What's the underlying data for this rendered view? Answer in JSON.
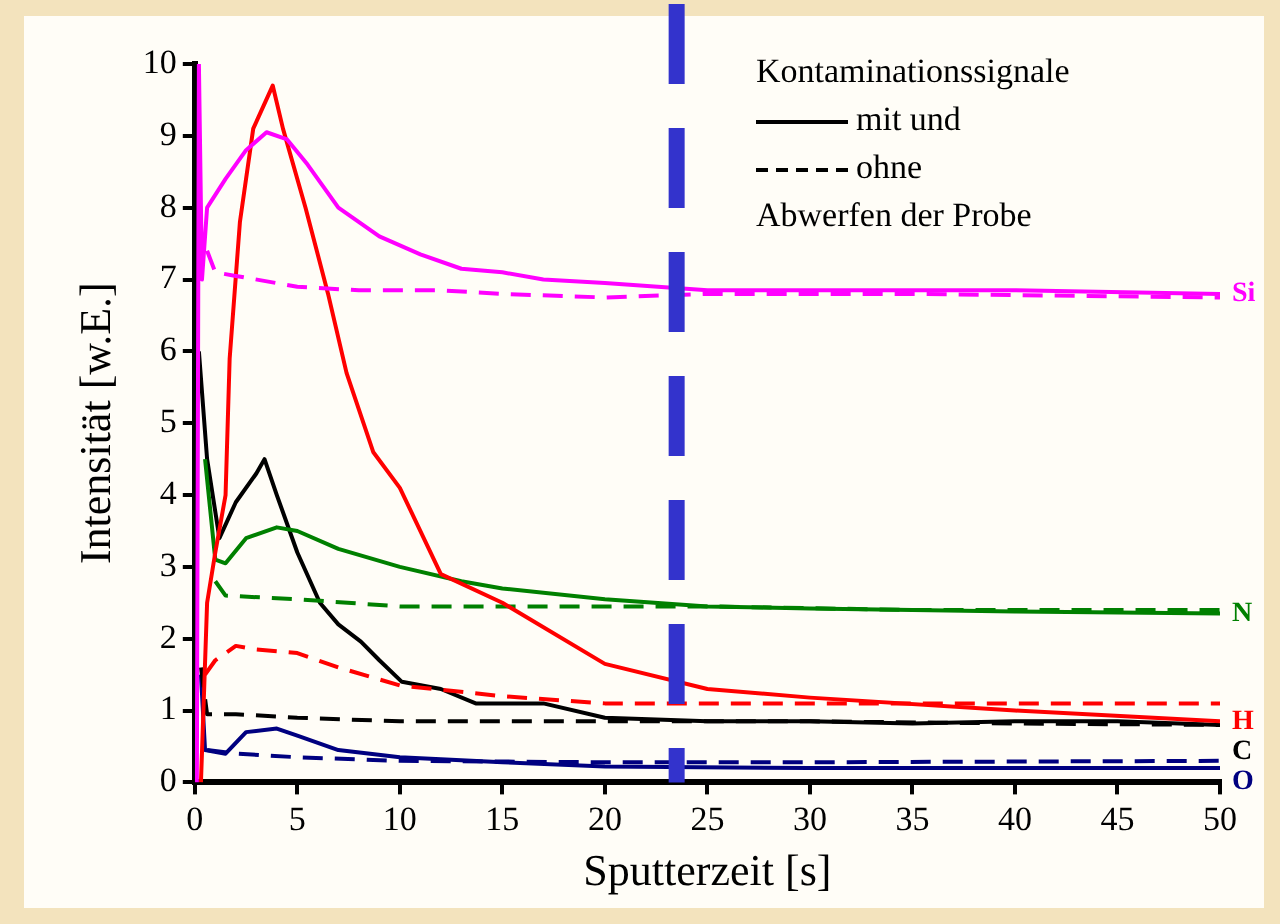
{
  "chart_data": {
    "type": "line",
    "xlabel": "Sputterzeit [s]",
    "ylabel": "Intensität [w.E.]",
    "xlim": [
      0,
      50
    ],
    "xticks": [
      0,
      5,
      10,
      15,
      20,
      25,
      30,
      35,
      40,
      45,
      50
    ],
    "ylim": [
      0,
      10
    ],
    "yticks": [
      0,
      1,
      2,
      3,
      4,
      5,
      6,
      7,
      8,
      9,
      10
    ],
    "grid": false,
    "legend": false,
    "marker": "none",
    "series": [
      {
        "name": "Si",
        "color": "#ff00ff",
        "line_style": "solid",
        "x": [
          0.1,
          0.2,
          0.35,
          0.6,
          1.5,
          2.5,
          3.5,
          4.5,
          5.5,
          7,
          9,
          11,
          13,
          15,
          17,
          20,
          25,
          30,
          40,
          50
        ],
        "values": [
          0,
          10,
          7,
          8,
          8.4,
          8.8,
          9.05,
          8.95,
          8.6,
          8,
          7.6,
          7.35,
          7.15,
          7.1,
          7,
          6.95,
          6.85,
          6.85,
          6.85,
          6.8
        ]
      },
      {
        "color": "#ff00ff",
        "line_style": "dashed",
        "x": [
          0.6,
          1,
          2,
          5,
          8,
          12,
          15,
          20,
          25,
          35,
          50
        ],
        "values": [
          7.4,
          7.1,
          7.05,
          6.9,
          6.85,
          6.85,
          6.8,
          6.75,
          6.8,
          6.8,
          6.75
        ]
      },
      {
        "name": "H",
        "color": "#ff0000",
        "line_style": "solid",
        "x": [
          0.3,
          0.6,
          1,
          1.5,
          1.7,
          2.2,
          2.85,
          3.8,
          4.3,
          5.4,
          6.5,
          7.4,
          8.7,
          10,
          12,
          15,
          20,
          25,
          30,
          40,
          50
        ],
        "values": [
          0,
          2.5,
          3.2,
          4,
          5.9,
          7.8,
          9.1,
          9.7,
          9.1,
          8,
          6.8,
          5.7,
          4.6,
          4.1,
          2.9,
          2.5,
          1.65,
          1.3,
          1.18,
          1,
          0.85
        ]
      },
      {
        "color": "#ff0000",
        "line_style": "dashed",
        "x": [
          0.5,
          1,
          2,
          3,
          5,
          7,
          10,
          15,
          20,
          25,
          30,
          35,
          40,
          45,
          50
        ],
        "values": [
          1.5,
          1.7,
          1.9,
          1.85,
          1.8,
          1.6,
          1.35,
          1.2,
          1.1,
          1.1,
          1.1,
          1.1,
          1.1,
          1.1,
          1.1
        ]
      },
      {
        "name": "N",
        "color": "#008000",
        "line_style": "solid",
        "x": [
          0.5,
          1,
          1.5,
          2.5,
          4,
          5,
          7,
          10,
          13,
          15,
          20,
          25,
          30,
          40,
          50
        ],
        "values": [
          4.5,
          3.1,
          3.05,
          3.4,
          3.55,
          3.5,
          3.25,
          3,
          2.8,
          2.7,
          2.55,
          2.45,
          2.42,
          2.38,
          2.35
        ]
      },
      {
        "color": "#008000",
        "line_style": "dashed",
        "x": [
          1,
          1.5,
          5,
          10,
          15,
          20,
          25,
          35,
          50
        ],
        "values": [
          2.8,
          2.6,
          2.55,
          2.45,
          2.45,
          2.45,
          2.45,
          2.4,
          2.4
        ]
      },
      {
        "name": "C",
        "color": "#000000",
        "line_style": "solid",
        "x": [
          0.2,
          0.6,
          1.2,
          2,
          3,
          3.4,
          4,
          5,
          6.1,
          7,
          8.1,
          9,
          10.1,
          12,
          13.7,
          15,
          17,
          20,
          25,
          30,
          35,
          40,
          45,
          50
        ],
        "values": [
          6,
          4.5,
          3.4,
          3.9,
          4.3,
          4.5,
          4,
          3.2,
          2.5,
          2.2,
          1.96,
          1.7,
          1.4,
          1.3,
          1.1,
          1.1,
          1.1,
          0.9,
          0.85,
          0.85,
          0.82,
          0.85,
          0.85,
          0.8
        ]
      },
      {
        "color": "#000000",
        "line_style": "dashed",
        "x": [
          0.3,
          0.6,
          2,
          5,
          10,
          20,
          30,
          40,
          50
        ],
        "values": [
          1.6,
          0.95,
          0.95,
          0.9,
          0.85,
          0.85,
          0.85,
          0.82,
          0.8
        ]
      },
      {
        "name": "O",
        "color": "#000080",
        "line_style": "solid",
        "x": [
          0.3,
          0.5,
          1.5,
          2.5,
          4,
          5,
          7,
          10,
          15,
          20,
          30,
          40,
          50
        ],
        "values": [
          1.5,
          0.45,
          0.4,
          0.7,
          0.75,
          0.65,
          0.45,
          0.35,
          0.28,
          0.22,
          0.2,
          0.2,
          0.2
        ]
      },
      {
        "color": "#000080",
        "line_style": "dashed",
        "x": [
          0.6,
          2,
          5,
          10,
          20,
          30,
          50
        ],
        "values": [
          0.45,
          0.4,
          0.35,
          0.3,
          0.28,
          0.28,
          0.3
        ]
      }
    ],
    "ref_lines": [
      {
        "axis": "x",
        "value": 23.5,
        "color": "#3333cc",
        "line_style": "dashed"
      }
    ],
    "annotations": [
      "Kontaminationssignale",
      "mit und",
      "ohne",
      "Abwerfen der Probe"
    ]
  }
}
